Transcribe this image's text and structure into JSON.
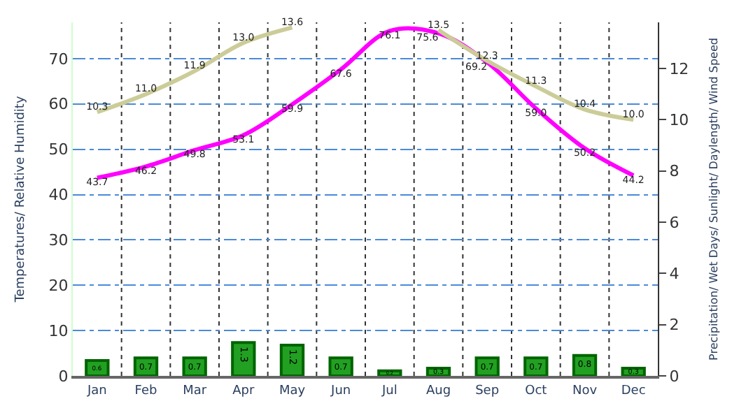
{
  "chart_data": {
    "type": "line",
    "categories": [
      "Jan",
      "Feb",
      "Mar",
      "Apr",
      "May",
      "Jun",
      "Jul",
      "Aug",
      "Sep",
      "Oct",
      "Nov",
      "Dec"
    ],
    "series": [
      {
        "type": "bar",
        "axis": "y2",
        "color": "#22a022",
        "values": [
          0.6,
          0.7,
          0.7,
          1.3,
          1.2,
          0.7,
          0.2,
          0.3,
          0.7,
          0.7,
          0.8,
          0.3
        ],
        "value_labels": [
          "0.6",
          "0.7",
          "0.7",
          "1.3",
          "1.2",
          "0.7",
          "0.2",
          "0.3",
          "0.7",
          "0.7",
          "0.8",
          "0.3"
        ]
      },
      {
        "axis": "y2",
        "color": "#cccc99",
        "values": [
          10.3,
          11.0,
          11.9,
          13.0,
          13.6,
          null,
          null,
          13.5,
          12.3,
          11.3,
          10.4,
          10.0
        ],
        "value_labels": [
          "10.3",
          "11.0",
          "11.9",
          "13.0",
          "13.6",
          null,
          null,
          "13.5",
          "12.3",
          "11.3",
          "10.4",
          "10.0"
        ]
      },
      {
        "color": "#ff00ff",
        "values": [
          43.7,
          46.2,
          49.8,
          53.1,
          59.9,
          67.6,
          76.1,
          75.6,
          69.2,
          59.0,
          50.2,
          44.2
        ],
        "value_labels": [
          "43.7",
          "46.2",
          "49.8",
          "53.1",
          "59.9",
          "67.6",
          "76.1",
          "75.6",
          "69.2",
          "59.0",
          "50.2",
          "44.2"
        ]
      }
    ],
    "ylabel": "Temperatures/ Relative Humidity",
    "y2label": "Precipitation/ Wet Days/ Sunlight/ Daylength/ Wind Speed",
    "ylim": [
      0,
      78
    ],
    "yticks": [
      0,
      10,
      20,
      30,
      40,
      50,
      60,
      70
    ],
    "y2lim": [
      0,
      13.8
    ],
    "y2ticks": [
      0,
      2,
      4,
      6,
      8,
      10,
      12
    ],
    "grid": true,
    "marker": "none"
  }
}
